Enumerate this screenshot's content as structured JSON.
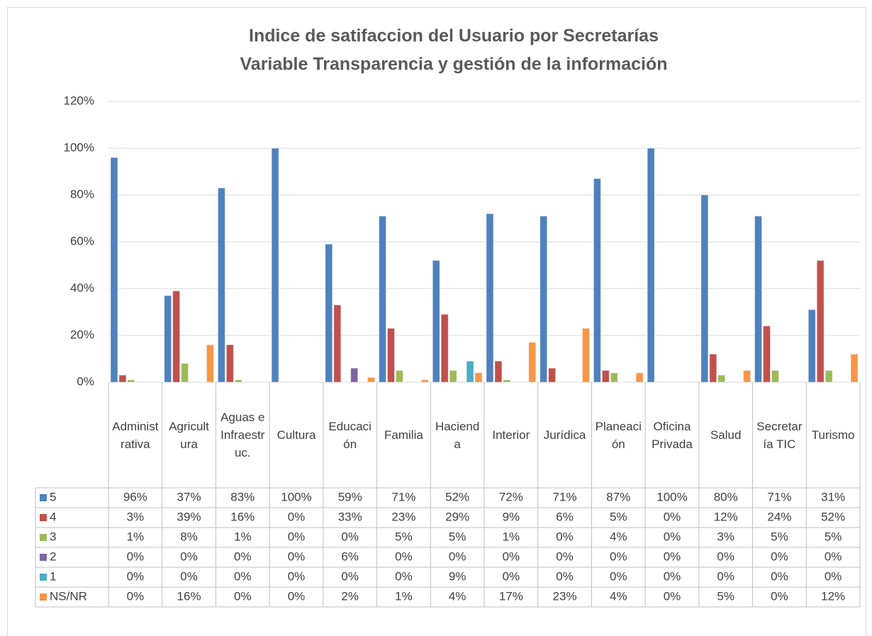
{
  "chart_data": {
    "type": "bar",
    "title": "Indice de satifaccion del Usuario por Secretarías",
    "subtitle": "Variable Transparencia y gestión de la información",
    "categories": [
      "Administrativa",
      "Agricultura",
      "Aguas e Infraestruc.",
      "Cultura",
      "Educación",
      "Familia",
      "Hacienda",
      "Interior",
      "Jurídica",
      "Planeación",
      "Oficina Privada",
      "Salud",
      "Secretaría TIC",
      "Turismo"
    ],
    "series": [
      {
        "name": "5",
        "color": "#4f81bd",
        "values": [
          96,
          37,
          83,
          100,
          59,
          71,
          52,
          72,
          71,
          87,
          100,
          80,
          71,
          31
        ],
        "value_labels": [
          "96%",
          "37%",
          "83%",
          "100%",
          "59%",
          "71%",
          "52%",
          "72%",
          "71%",
          "87%",
          "100%",
          "80%",
          "71%",
          "31%"
        ]
      },
      {
        "name": "4",
        "color": "#c0504d",
        "values": [
          3,
          39,
          16,
          0,
          33,
          23,
          29,
          9,
          6,
          5,
          0,
          12,
          24,
          52
        ],
        "value_labels": [
          "3%",
          "39%",
          "16%",
          "0%",
          "33%",
          "23%",
          "29%",
          "9%",
          "6%",
          "5%",
          "0%",
          "12%",
          "24%",
          "52%"
        ]
      },
      {
        "name": "3",
        "color": "#9bbb59",
        "values": [
          1,
          8,
          1,
          0,
          0,
          5,
          5,
          1,
          0,
          4,
          0,
          3,
          5,
          5
        ],
        "value_labels": [
          "1%",
          "8%",
          "1%",
          "0%",
          "0%",
          "5%",
          "5%",
          "1%",
          "0%",
          "4%",
          "0%",
          "3%",
          "5%",
          "5%"
        ]
      },
      {
        "name": "2",
        "color": "#8064a2",
        "values": [
          0,
          0,
          0,
          0,
          6,
          0,
          0,
          0,
          0,
          0,
          0,
          0,
          0,
          0
        ],
        "value_labels": [
          "0%",
          "0%",
          "0%",
          "0%",
          "6%",
          "0%",
          "0%",
          "0%",
          "0%",
          "0%",
          "0%",
          "0%",
          "0%",
          "0%"
        ]
      },
      {
        "name": "1",
        "color": "#4bacc6",
        "values": [
          0,
          0,
          0,
          0,
          0,
          0,
          9,
          0,
          0,
          0,
          0,
          0,
          0,
          0
        ],
        "value_labels": [
          "0%",
          "0%",
          "0%",
          "0%",
          "0%",
          "0%",
          "9%",
          "0%",
          "0%",
          "0%",
          "0%",
          "0%",
          "0%",
          "0%"
        ]
      },
      {
        "name": "NS/NR",
        "color": "#f79646",
        "values": [
          0,
          16,
          0,
          0,
          2,
          1,
          4,
          17,
          23,
          4,
          0,
          5,
          0,
          12
        ],
        "value_labels": [
          "0%",
          "16%",
          "0%",
          "0%",
          "2%",
          "1%",
          "4%",
          "17%",
          "23%",
          "4%",
          "0%",
          "5%",
          "0%",
          "12%"
        ]
      }
    ],
    "ylim": [
      0,
      120
    ],
    "yticks": [
      {
        "value": 0,
        "label": "0%"
      },
      {
        "value": 20,
        "label": "20%"
      },
      {
        "value": 40,
        "label": "40%"
      },
      {
        "value": 60,
        "label": "60%"
      },
      {
        "value": 80,
        "label": "80%"
      },
      {
        "value": 100,
        "label": "100%"
      },
      {
        "value": 120,
        "label": "120%"
      }
    ],
    "grid": true
  }
}
